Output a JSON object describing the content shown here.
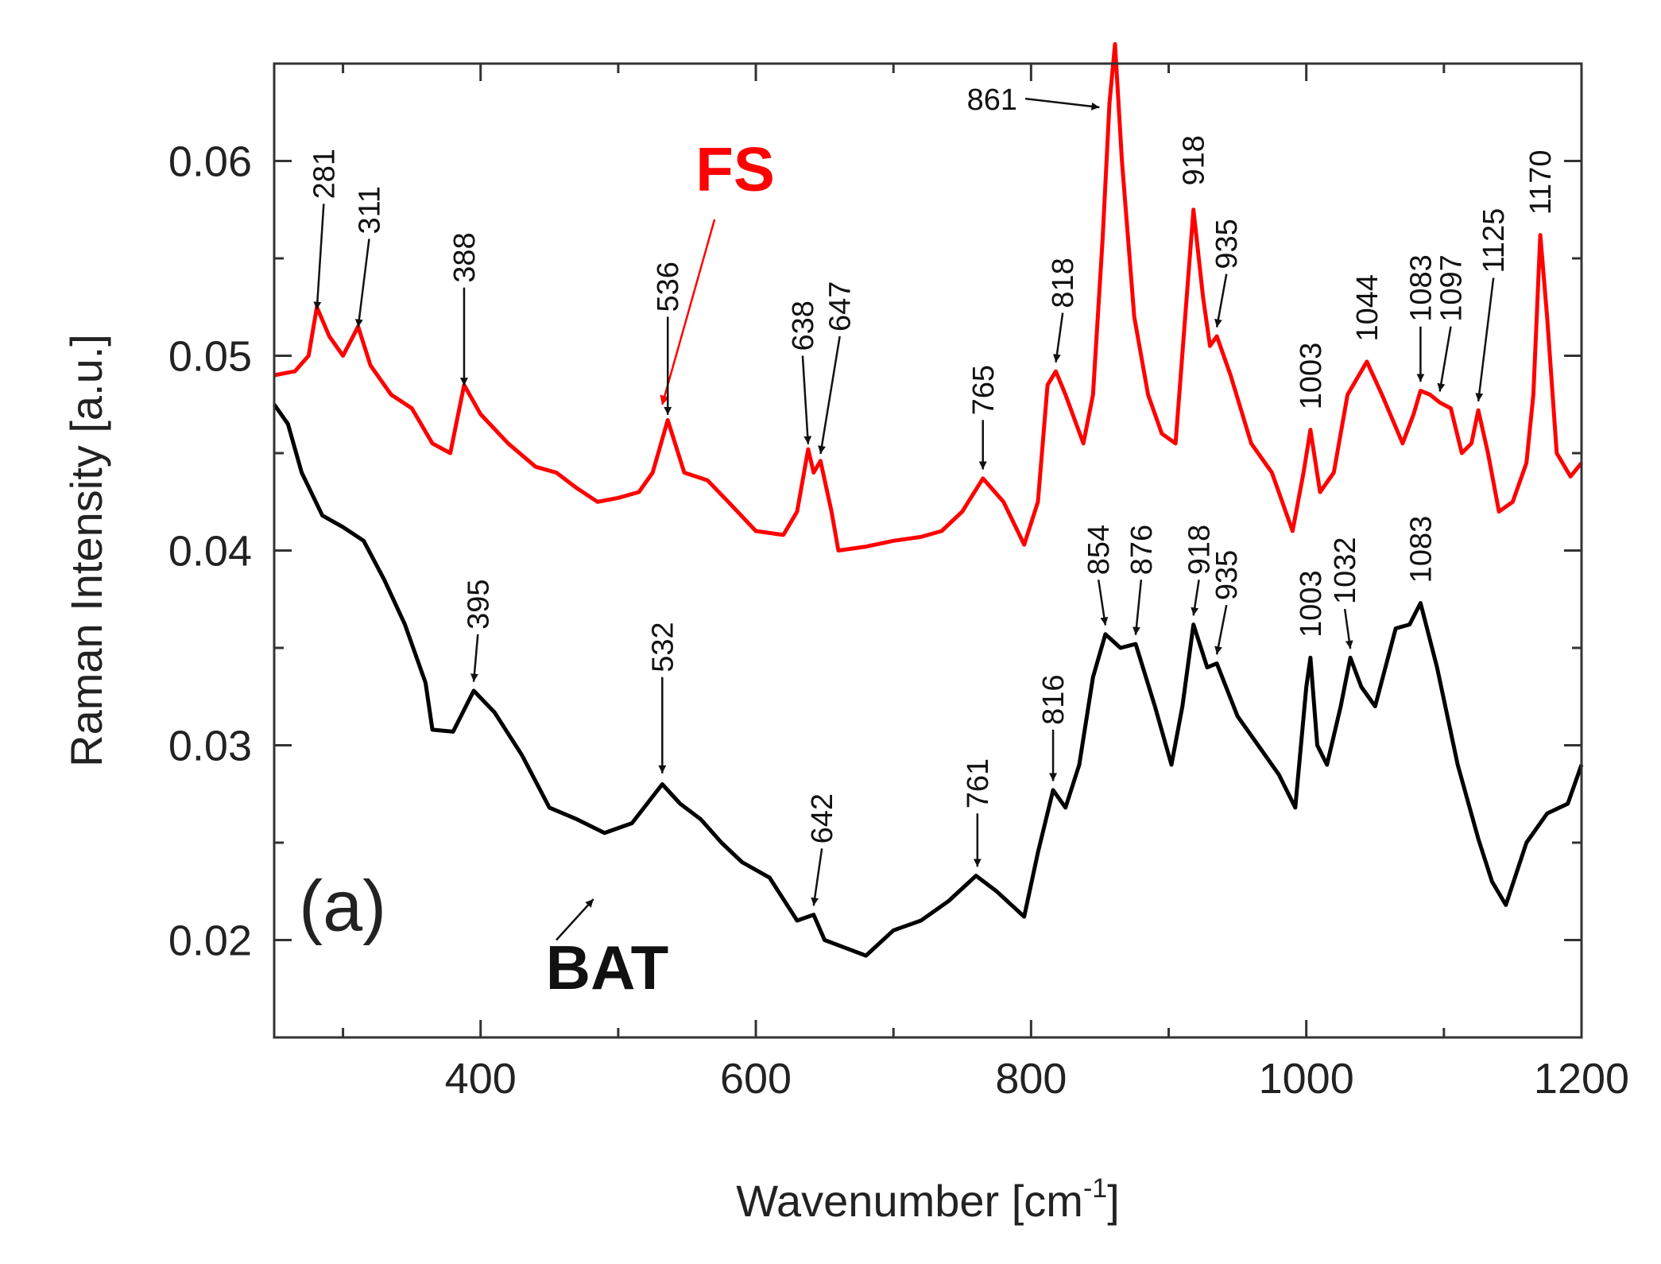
{
  "chart_data": {
    "type": "line",
    "panel_label": "(a)",
    "xlabel": "Wavenumber [cm",
    "xlabel_sup": "-1",
    "xlabel_end": "]",
    "ylabel": "Raman Intensity [a.u.]",
    "xlim": [
      250,
      1200
    ],
    "ylim": [
      0.015,
      0.065
    ],
    "x_ticks": [
      400,
      600,
      800,
      1000,
      1200
    ],
    "x_tick_labels": [
      "400",
      "600",
      "800",
      "1000",
      "1200"
    ],
    "y_ticks": [
      0.02,
      0.03,
      0.04,
      0.05,
      0.06
    ],
    "y_tick_labels": [
      "0.02",
      "0.03",
      "0.04",
      "0.05",
      "0.06"
    ],
    "series": [
      {
        "name": "FS",
        "color": "#ff0000",
        "label_pos": [
          585,
          0.0585
        ],
        "label_arrow": [
          [
            570,
            0.057
          ],
          [
            532,
            0.0475
          ]
        ],
        "points": [
          [
            250,
            0.049
          ],
          [
            265,
            0.0492
          ],
          [
            275,
            0.05
          ],
          [
            281,
            0.0525
          ],
          [
            290,
            0.051
          ],
          [
            300,
            0.05
          ],
          [
            311,
            0.0515
          ],
          [
            320,
            0.0495
          ],
          [
            335,
            0.048
          ],
          [
            350,
            0.0473
          ],
          [
            365,
            0.0455
          ],
          [
            378,
            0.045
          ],
          [
            388,
            0.0485
          ],
          [
            400,
            0.047
          ],
          [
            420,
            0.0455
          ],
          [
            440,
            0.0443
          ],
          [
            455,
            0.044
          ],
          [
            470,
            0.0432
          ],
          [
            485,
            0.0425
          ],
          [
            500,
            0.0427
          ],
          [
            515,
            0.043
          ],
          [
            525,
            0.044
          ],
          [
            536,
            0.0467
          ],
          [
            548,
            0.044
          ],
          [
            565,
            0.0436
          ],
          [
            580,
            0.0425
          ],
          [
            600,
            0.041
          ],
          [
            620,
            0.0408
          ],
          [
            630,
            0.042
          ],
          [
            638,
            0.0452
          ],
          [
            642,
            0.044
          ],
          [
            647,
            0.0446
          ],
          [
            655,
            0.042
          ],
          [
            660,
            0.04
          ],
          [
            680,
            0.0402
          ],
          [
            700,
            0.0405
          ],
          [
            720,
            0.0407
          ],
          [
            735,
            0.041
          ],
          [
            750,
            0.042
          ],
          [
            765,
            0.0437
          ],
          [
            780,
            0.0425
          ],
          [
            795,
            0.0403
          ],
          [
            805,
            0.0425
          ],
          [
            812,
            0.0485
          ],
          [
            818,
            0.0492
          ],
          [
            825,
            0.048
          ],
          [
            838,
            0.0455
          ],
          [
            845,
            0.048
          ],
          [
            852,
            0.056
          ],
          [
            857,
            0.063
          ],
          [
            861,
            0.066
          ],
          [
            866,
            0.06
          ],
          [
            875,
            0.052
          ],
          [
            885,
            0.048
          ],
          [
            895,
            0.046
          ],
          [
            905,
            0.0455
          ],
          [
            912,
            0.052
          ],
          [
            918,
            0.0575
          ],
          [
            925,
            0.053
          ],
          [
            930,
            0.0505
          ],
          [
            935,
            0.051
          ],
          [
            945,
            0.049
          ],
          [
            960,
            0.0455
          ],
          [
            975,
            0.044
          ],
          [
            990,
            0.041
          ],
          [
            998,
            0.044
          ],
          [
            1003,
            0.0462
          ],
          [
            1010,
            0.043
          ],
          [
            1020,
            0.044
          ],
          [
            1030,
            0.048
          ],
          [
            1044,
            0.0497
          ],
          [
            1055,
            0.048
          ],
          [
            1070,
            0.0455
          ],
          [
            1078,
            0.047
          ],
          [
            1083,
            0.0482
          ],
          [
            1090,
            0.048
          ],
          [
            1097,
            0.0476
          ],
          [
            1105,
            0.0473
          ],
          [
            1113,
            0.045
          ],
          [
            1120,
            0.0455
          ],
          [
            1125,
            0.0472
          ],
          [
            1132,
            0.045
          ],
          [
            1140,
            0.042
          ],
          [
            1150,
            0.0425
          ],
          [
            1160,
            0.0445
          ],
          [
            1165,
            0.048
          ],
          [
            1170,
            0.0562
          ],
          [
            1175,
            0.052
          ],
          [
            1182,
            0.045
          ],
          [
            1192,
            0.0438
          ],
          [
            1200,
            0.0445
          ]
        ]
      },
      {
        "name": "BAT",
        "color": "#000000",
        "label_pos": [
          492,
          0.0175
        ],
        "label_arrow": [
          [
            455,
            0.02
          ],
          [
            482,
            0.0221
          ]
        ],
        "points": [
          [
            250,
            0.0475
          ],
          [
            260,
            0.0465
          ],
          [
            270,
            0.044
          ],
          [
            285,
            0.0418
          ],
          [
            300,
            0.0412
          ],
          [
            315,
            0.0405
          ],
          [
            330,
            0.0385
          ],
          [
            345,
            0.0362
          ],
          [
            360,
            0.0332
          ],
          [
            365,
            0.0308
          ],
          [
            380,
            0.0307
          ],
          [
            395,
            0.0328
          ],
          [
            410,
            0.0317
          ],
          [
            430,
            0.0295
          ],
          [
            450,
            0.0268
          ],
          [
            470,
            0.0262
          ],
          [
            490,
            0.0255
          ],
          [
            510,
            0.026
          ],
          [
            532,
            0.028
          ],
          [
            545,
            0.027
          ],
          [
            560,
            0.0262
          ],
          [
            575,
            0.025
          ],
          [
            590,
            0.024
          ],
          [
            610,
            0.0232
          ],
          [
            630,
            0.021
          ],
          [
            642,
            0.0213
          ],
          [
            650,
            0.02
          ],
          [
            665,
            0.0196
          ],
          [
            680,
            0.0192
          ],
          [
            700,
            0.0205
          ],
          [
            720,
            0.021
          ],
          [
            740,
            0.022
          ],
          [
            760,
            0.0233
          ],
          [
            775,
            0.0225
          ],
          [
            795,
            0.0212
          ],
          [
            805,
            0.0245
          ],
          [
            816,
            0.0277
          ],
          [
            825,
            0.0268
          ],
          [
            835,
            0.029
          ],
          [
            845,
            0.0335
          ],
          [
            854,
            0.0357
          ],
          [
            865,
            0.035
          ],
          [
            876,
            0.0352
          ],
          [
            890,
            0.032
          ],
          [
            902,
            0.029
          ],
          [
            910,
            0.032
          ],
          [
            918,
            0.0362
          ],
          [
            928,
            0.034
          ],
          [
            935,
            0.0342
          ],
          [
            950,
            0.0315
          ],
          [
            965,
            0.03
          ],
          [
            980,
            0.0285
          ],
          [
            992,
            0.0268
          ],
          [
            1000,
            0.033
          ],
          [
            1003,
            0.0345
          ],
          [
            1008,
            0.03
          ],
          [
            1015,
            0.029
          ],
          [
            1025,
            0.032
          ],
          [
            1032,
            0.0345
          ],
          [
            1040,
            0.033
          ],
          [
            1050,
            0.032
          ],
          [
            1065,
            0.036
          ],
          [
            1075,
            0.0362
          ],
          [
            1083,
            0.0373
          ],
          [
            1095,
            0.034
          ],
          [
            1110,
            0.029
          ],
          [
            1125,
            0.0252
          ],
          [
            1135,
            0.023
          ],
          [
            1145,
            0.0218
          ],
          [
            1160,
            0.025
          ],
          [
            1175,
            0.0265
          ],
          [
            1190,
            0.027
          ],
          [
            1200,
            0.029
          ]
        ]
      }
    ],
    "annotations": [
      {
        "text": "281",
        "series": "FS",
        "tip": [
          281,
          0.0522
        ],
        "tail": [
          286,
          0.0578
        ],
        "rot": -90
      },
      {
        "text": "311",
        "series": "FS",
        "tip": [
          311,
          0.0513
        ],
        "tail": [
          319,
          0.056
        ],
        "rot": -90
      },
      {
        "text": "388",
        "series": "FS",
        "tip": [
          388,
          0.0483
        ],
        "tail": [
          388,
          0.0535
        ],
        "rot": -90
      },
      {
        "text": "536",
        "series": "FS",
        "tip": [
          536,
          0.0468
        ],
        "tail": [
          536,
          0.052
        ],
        "rot": -90
      },
      {
        "text": "638",
        "series": "FS",
        "tip": [
          638,
          0.0453
        ],
        "tail": [
          634,
          0.05
        ],
        "rot": -90
      },
      {
        "text": "647",
        "series": "FS",
        "tip": [
          647,
          0.0448
        ],
        "tail": [
          661,
          0.051
        ],
        "rot": -90
      },
      {
        "text": "765",
        "series": "FS",
        "tip": [
          765,
          0.044
        ],
        "tail": [
          765,
          0.0467
        ],
        "rot": -90
      },
      {
        "text": "818",
        "series": "FS",
        "tip": [
          818,
          0.0495
        ],
        "tail": [
          823,
          0.0522
        ],
        "rot": -90
      },
      {
        "text": "861",
        "series": "FS",
        "tip": [
          852,
          0.063
        ],
        "tail": [
          790,
          0.0632
        ],
        "rot": 0
      },
      {
        "text": "918",
        "series": "FS",
        "tip": [
          918,
          0.058
        ],
        "tail": [
          918,
          0.058
        ],
        "rot": -90,
        "noarrow": true
      },
      {
        "text": "935",
        "series": "FS",
        "tip": [
          935,
          0.0513
        ],
        "tail": [
          942,
          0.0542
        ],
        "rot": -90
      },
      {
        "text": "1003",
        "series": "FS",
        "tip": [
          1003,
          0.0465
        ],
        "tail": [
          1003,
          0.0465
        ],
        "rot": -90,
        "noarrow": true
      },
      {
        "text": "1044",
        "series": "FS",
        "tip": [
          1044,
          0.05
        ],
        "tail": [
          1044,
          0.05
        ],
        "rot": -90,
        "noarrow": true
      },
      {
        "text": "1083",
        "series": "FS",
        "tip": [
          1083,
          0.0485
        ],
        "tail": [
          1083,
          0.0515
        ],
        "rot": -90
      },
      {
        "text": "1097",
        "series": "FS",
        "tip": [
          1097,
          0.048
        ],
        "tail": [
          1105,
          0.0515
        ],
        "rot": -90
      },
      {
        "text": "1125",
        "series": "FS",
        "tip": [
          1125,
          0.0475
        ],
        "tail": [
          1136,
          0.054
        ],
        "rot": -90
      },
      {
        "text": "1170",
        "series": "FS",
        "tip": [
          1170,
          0.0565
        ],
        "tail": [
          1170,
          0.0565
        ],
        "rot": -90,
        "noarrow": true
      },
      {
        "text": "395",
        "series": "BAT",
        "tip": [
          395,
          0.0331
        ],
        "tail": [
          398,
          0.0357
        ],
        "rot": -90
      },
      {
        "text": "532",
        "series": "BAT",
        "tip": [
          532,
          0.0284
        ],
        "tail": [
          532,
          0.0335
        ],
        "rot": -90
      },
      {
        "text": "642",
        "series": "BAT",
        "tip": [
          642,
          0.0216
        ],
        "tail": [
          648,
          0.0247
        ],
        "rot": -90
      },
      {
        "text": "761",
        "series": "BAT",
        "tip": [
          761,
          0.0236
        ],
        "tail": [
          761,
          0.0265
        ],
        "rot": -90
      },
      {
        "text": "816",
        "series": "BAT",
        "tip": [
          816,
          0.028
        ],
        "tail": [
          816,
          0.0308
        ],
        "rot": -90
      },
      {
        "text": "854",
        "series": "BAT",
        "tip": [
          854,
          0.036
        ],
        "tail": [
          849,
          0.0385
        ],
        "rot": -90
      },
      {
        "text": "876",
        "series": "BAT",
        "tip": [
          876,
          0.0355
        ],
        "tail": [
          880,
          0.0385
        ],
        "rot": -90
      },
      {
        "text": "918",
        "series": "BAT",
        "tip": [
          918,
          0.0365
        ],
        "tail": [
          922,
          0.0385
        ],
        "rot": -90
      },
      {
        "text": "935",
        "series": "BAT",
        "tip": [
          935,
          0.0345
        ],
        "tail": [
          942,
          0.0372
        ],
        "rot": -90
      },
      {
        "text": "1003",
        "series": "BAT",
        "tip": [
          1003,
          0.0348
        ],
        "tail": [
          1003,
          0.0348
        ],
        "rot": -90,
        "noarrow": true
      },
      {
        "text": "1032",
        "series": "BAT",
        "tip": [
          1032,
          0.0348
        ],
        "tail": [
          1028,
          0.037
        ],
        "rot": -90
      },
      {
        "text": "1083",
        "series": "BAT",
        "tip": [
          1083,
          0.0376
        ],
        "tail": [
          1083,
          0.0376
        ],
        "rot": -90,
        "noarrow": true
      }
    ]
  }
}
